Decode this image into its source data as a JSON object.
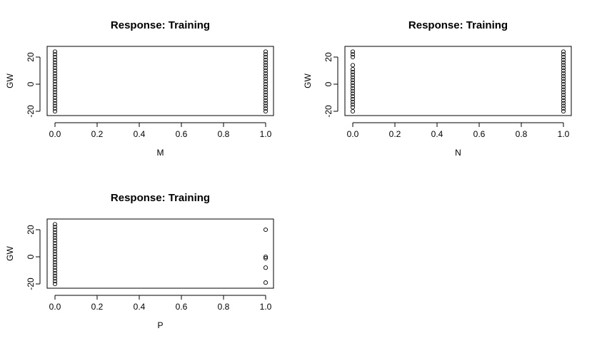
{
  "chart_data": [
    {
      "type": "scatter",
      "title": "Response: Training",
      "xlabel": "M",
      "ylabel": "GW",
      "xlim": [
        0,
        1
      ],
      "ylim": [
        -20,
        25
      ],
      "xticks": [
        "0.0",
        "0.2",
        "0.4",
        "0.6",
        "0.8",
        "1.0"
      ],
      "yticks": [
        "-20",
        "0",
        "20"
      ],
      "grid": false,
      "points": [
        {
          "x": 0,
          "y": -20
        },
        {
          "x": 0,
          "y": -18
        },
        {
          "x": 0,
          "y": -16
        },
        {
          "x": 0,
          "y": -14
        },
        {
          "x": 0,
          "y": -12
        },
        {
          "x": 0,
          "y": -10
        },
        {
          "x": 0,
          "y": -8
        },
        {
          "x": 0,
          "y": -6
        },
        {
          "x": 0,
          "y": -4
        },
        {
          "x": 0,
          "y": -2
        },
        {
          "x": 0,
          "y": 0
        },
        {
          "x": 0,
          "y": 2
        },
        {
          "x": 0,
          "y": 4
        },
        {
          "x": 0,
          "y": 6
        },
        {
          "x": 0,
          "y": 8
        },
        {
          "x": 0,
          "y": 10
        },
        {
          "x": 0,
          "y": 12
        },
        {
          "x": 0,
          "y": 14
        },
        {
          "x": 0,
          "y": 16
        },
        {
          "x": 0,
          "y": 18
        },
        {
          "x": 0,
          "y": 20
        },
        {
          "x": 0,
          "y": 22
        },
        {
          "x": 0,
          "y": 24
        },
        {
          "x": 1,
          "y": -20
        },
        {
          "x": 1,
          "y": -18
        },
        {
          "x": 1,
          "y": -16
        },
        {
          "x": 1,
          "y": -14
        },
        {
          "x": 1,
          "y": -12
        },
        {
          "x": 1,
          "y": -10
        },
        {
          "x": 1,
          "y": -8
        },
        {
          "x": 1,
          "y": -6
        },
        {
          "x": 1,
          "y": -4
        },
        {
          "x": 1,
          "y": -2
        },
        {
          "x": 1,
          "y": 0
        },
        {
          "x": 1,
          "y": 2
        },
        {
          "x": 1,
          "y": 4
        },
        {
          "x": 1,
          "y": 6
        },
        {
          "x": 1,
          "y": 8
        },
        {
          "x": 1,
          "y": 10
        },
        {
          "x": 1,
          "y": 12
        },
        {
          "x": 1,
          "y": 14
        },
        {
          "x": 1,
          "y": 16
        },
        {
          "x": 1,
          "y": 18
        },
        {
          "x": 1,
          "y": 20
        },
        {
          "x": 1,
          "y": 22
        },
        {
          "x": 1,
          "y": 24
        }
      ]
    },
    {
      "type": "scatter",
      "title": "Response: Training",
      "xlabel": "N",
      "ylabel": "GW",
      "xlim": [
        0,
        1
      ],
      "ylim": [
        -20,
        25
      ],
      "xticks": [
        "0.0",
        "0.2",
        "0.4",
        "0.6",
        "0.8",
        "1.0"
      ],
      "yticks": [
        "-20",
        "0",
        "20"
      ],
      "grid": false,
      "points": [
        {
          "x": 0,
          "y": -20
        },
        {
          "x": 0,
          "y": -17
        },
        {
          "x": 0,
          "y": -15
        },
        {
          "x": 0,
          "y": -13
        },
        {
          "x": 0,
          "y": -11
        },
        {
          "x": 0,
          "y": -9
        },
        {
          "x": 0,
          "y": -7
        },
        {
          "x": 0,
          "y": -5
        },
        {
          "x": 0,
          "y": -3
        },
        {
          "x": 0,
          "y": -1
        },
        {
          "x": 0,
          "y": 1
        },
        {
          "x": 0,
          "y": 3
        },
        {
          "x": 0,
          "y": 5
        },
        {
          "x": 0,
          "y": 7
        },
        {
          "x": 0,
          "y": 9
        },
        {
          "x": 0,
          "y": 11
        },
        {
          "x": 0,
          "y": 14
        },
        {
          "x": 0,
          "y": 20
        },
        {
          "x": 0,
          "y": 22
        },
        {
          "x": 0,
          "y": 24
        },
        {
          "x": 1,
          "y": -20
        },
        {
          "x": 1,
          "y": -18
        },
        {
          "x": 1,
          "y": -16
        },
        {
          "x": 1,
          "y": -14
        },
        {
          "x": 1,
          "y": -12
        },
        {
          "x": 1,
          "y": -10
        },
        {
          "x": 1,
          "y": -8
        },
        {
          "x": 1,
          "y": -6
        },
        {
          "x": 1,
          "y": -4
        },
        {
          "x": 1,
          "y": -2
        },
        {
          "x": 1,
          "y": 0
        },
        {
          "x": 1,
          "y": 2
        },
        {
          "x": 1,
          "y": 4
        },
        {
          "x": 1,
          "y": 6
        },
        {
          "x": 1,
          "y": 8
        },
        {
          "x": 1,
          "y": 10
        },
        {
          "x": 1,
          "y": 12
        },
        {
          "x": 1,
          "y": 14
        },
        {
          "x": 1,
          "y": 16
        },
        {
          "x": 1,
          "y": 18
        },
        {
          "x": 1,
          "y": 20
        },
        {
          "x": 1,
          "y": 22
        },
        {
          "x": 1,
          "y": 24
        }
      ]
    },
    {
      "type": "scatter",
      "title": "Response: Training",
      "xlabel": "P",
      "ylabel": "GW",
      "xlim": [
        0,
        1
      ],
      "ylim": [
        -20,
        25
      ],
      "xticks": [
        "0.0",
        "0.2",
        "0.4",
        "0.6",
        "0.8",
        "1.0"
      ],
      "yticks": [
        "-20",
        "0",
        "20"
      ],
      "grid": false,
      "points": [
        {
          "x": 0,
          "y": -20
        },
        {
          "x": 0,
          "y": -18
        },
        {
          "x": 0,
          "y": -16
        },
        {
          "x": 0,
          "y": -14
        },
        {
          "x": 0,
          "y": -12
        },
        {
          "x": 0,
          "y": -10
        },
        {
          "x": 0,
          "y": -8
        },
        {
          "x": 0,
          "y": -6
        },
        {
          "x": 0,
          "y": -4
        },
        {
          "x": 0,
          "y": -2
        },
        {
          "x": 0,
          "y": 0
        },
        {
          "x": 0,
          "y": 2
        },
        {
          "x": 0,
          "y": 4
        },
        {
          "x": 0,
          "y": 6
        },
        {
          "x": 0,
          "y": 8
        },
        {
          "x": 0,
          "y": 10
        },
        {
          "x": 0,
          "y": 12
        },
        {
          "x": 0,
          "y": 14
        },
        {
          "x": 0,
          "y": 16
        },
        {
          "x": 0,
          "y": 18
        },
        {
          "x": 0,
          "y": 20
        },
        {
          "x": 0,
          "y": 22
        },
        {
          "x": 0,
          "y": 24
        },
        {
          "x": 1,
          "y": 20
        },
        {
          "x": 1,
          "y": 0
        },
        {
          "x": 1,
          "y": -1
        },
        {
          "x": 1,
          "y": -8
        },
        {
          "x": 1,
          "y": -19
        }
      ]
    }
  ]
}
